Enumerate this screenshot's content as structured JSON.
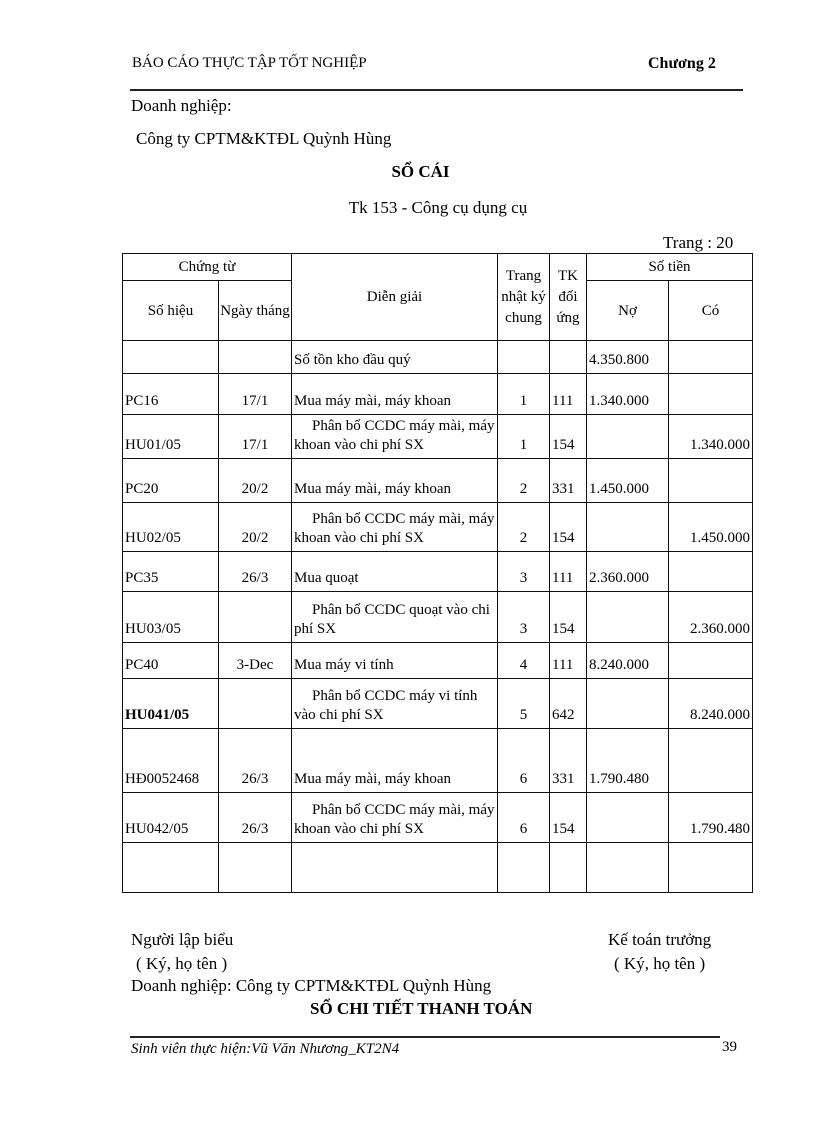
{
  "header": {
    "report_title": "BÁO CÁO THỰC TẬP TỐT NGHIỆP",
    "chapter": "Chương 2"
  },
  "enterprise_label": "Doanh nghiệp:",
  "company": "Công ty CPTM&KTĐL Quỳnh Hùng",
  "title": "SỔ CÁI",
  "account": "Tk 153   - Công cụ dụng cụ",
  "page_label": "Trang : 20",
  "table": {
    "headers": {
      "voucher": "Chứng từ",
      "voucher_no": "Số hiệu",
      "voucher_date": "Ngày tháng",
      "description": "Diễn giải",
      "journal_page": "Trang nhật ký chung",
      "contra_account": "TK đối ứng",
      "amount": "Số tiền",
      "debit": "Nợ",
      "credit": "Có"
    },
    "rows": [
      {
        "no": "",
        "date": "",
        "desc": "Số tồn kho đầu quý",
        "page": "",
        "acct": "",
        "debit": "4.350.800",
        "credit": ""
      },
      {
        "no": "PC16",
        "date": "17/1",
        "desc": "Mua máy mài, máy khoan",
        "page": "1",
        "acct": "111",
        "debit": "1.340.000",
        "credit": ""
      },
      {
        "no": "HU01/05",
        "date": "17/1",
        "desc": "Phân bổ CCDC máy mài, máy khoan vào chi phí SX",
        "page": "1",
        "acct": "154",
        "debit": "",
        "credit": "1.340.000"
      },
      {
        "no": "PC20",
        "date": "20/2",
        "desc": "Mua máy mài, máy khoan",
        "page": "2",
        "acct": "331",
        "debit": "1.450.000",
        "credit": ""
      },
      {
        "no": "HU02/05",
        "date": "20/2",
        "desc": "Phân bổ CCDC máy mài, máy khoan vào chi phí SX",
        "page": "2",
        "acct": "154",
        "debit": "",
        "credit": "1.450.000"
      },
      {
        "no": "PC35",
        "date": "26/3",
        "desc": "Mua quoạt",
        "page": "3",
        "acct": "111",
        "debit": "2.360.000",
        "credit": ""
      },
      {
        "no": "HU03/05",
        "date": "",
        "desc": "Phân bổ CCDC quoạt vào chi phí SX",
        "page": "3",
        "acct": "154",
        "debit": "",
        "credit": "2.360.000"
      },
      {
        "no": "PC40",
        "date": "3-Dec",
        "desc": "Mua máy vi tính",
        "page": "4",
        "acct": "111",
        "debit": "8.240.000",
        "credit": ""
      },
      {
        "no": "HU041/05",
        "date": "",
        "desc": "Phân bổ CCDC máy vi tính vào chi phí SX",
        "page": "5",
        "acct": "642",
        "debit": "",
        "credit": "8.240.000"
      },
      {
        "no": "HĐ0052468",
        "date": "26/3",
        "desc": "Mua máy mài, máy khoan",
        "page": "6",
        "acct": "331",
        "debit": "1.790.480",
        "credit": ""
      },
      {
        "no": "HU042/05",
        "date": "26/3",
        "desc": "Phân bổ CCDC máy mài, máy khoan vào chi phí SX",
        "page": "6",
        "acct": "154",
        "debit": "",
        "credit": "1.790.480"
      },
      {
        "no": "",
        "date": "",
        "desc": "",
        "page": "",
        "acct": "",
        "debit": "",
        "credit": ""
      }
    ]
  },
  "signatures": {
    "preparer": "Người lập biểu",
    "preparer_note": "( Ký, họ tên )",
    "chief_accountant": "Kế toán trưởng",
    "chief_note": "( Ký, họ tên )"
  },
  "enterprise_line": "Doanh nghiệp: Công ty CPTM&KTĐL Quỳnh Hùng",
  "next_title": "SỔ CHI TIẾT  THANH TOÁN",
  "footer": {
    "student": "Sinh viên thực hiện:Vũ Văn Nhương_KT2N4",
    "page_number": "39"
  }
}
